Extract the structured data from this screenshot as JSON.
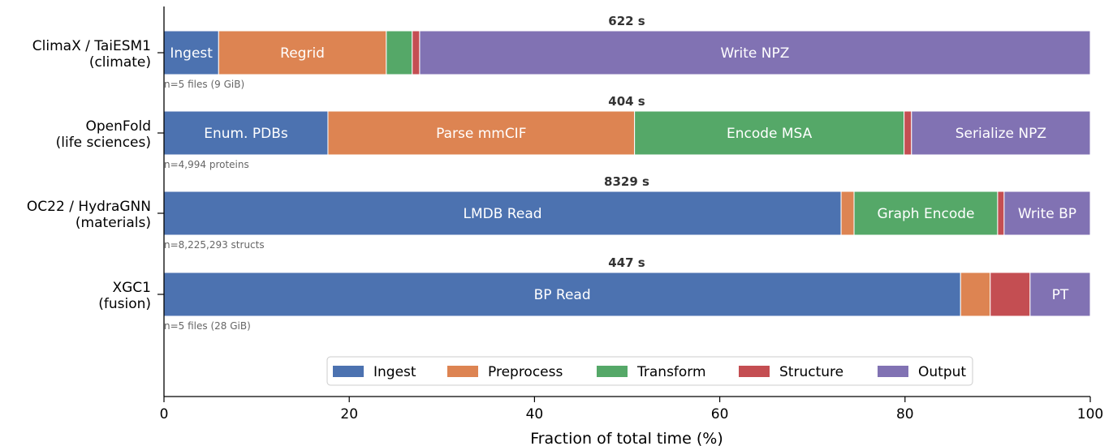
{
  "chart_data": {
    "type": "bar",
    "orientation": "horizontal",
    "stacked": true,
    "xlabel": "Fraction of total time (%)",
    "xlim": [
      0,
      100
    ],
    "xticks": [
      0,
      20,
      40,
      60,
      80,
      100
    ],
    "grid": false,
    "legend_position": "bottom-center",
    "categories": [
      "ClimaX / TaiESM1\n(climate)",
      "OpenFold\n(life sciences)",
      "OC22 / HydraGNN\n(materials)",
      "XGC1\n(fusion)"
    ],
    "totals": [
      "622 s",
      "404 s",
      "8329 s",
      "447 s"
    ],
    "notes": [
      "n=5 files  (9 GiB)",
      "n=4,994 proteins",
      "n=8,225,293 structs",
      "n=5 files  (28 GiB)"
    ],
    "series": [
      {
        "name": "Ingest",
        "color": "#4c72b0",
        "values": [
          5.9,
          17.7,
          73.1,
          86.0
        ]
      },
      {
        "name": "Preprocess",
        "color": "#dd8452",
        "values": [
          18.1,
          33.1,
          1.4,
          3.2
        ]
      },
      {
        "name": "Transform",
        "color": "#55a868",
        "values": [
          2.8,
          29.1,
          15.5,
          0.0
        ]
      },
      {
        "name": "Structure",
        "color": "#c44e52",
        "values": [
          0.8,
          0.8,
          0.7,
          4.3
        ]
      },
      {
        "name": "Output",
        "color": "#8172b3",
        "values": [
          72.4,
          19.3,
          9.3,
          6.5
        ]
      }
    ],
    "segment_labels": [
      [
        "Ingest",
        "Regrid",
        "",
        "",
        "Write NPZ"
      ],
      [
        "Enum. PDBs",
        "Parse mmCIF",
        "Encode MSA",
        "",
        "Serialize NPZ"
      ],
      [
        "LMDB Read",
        "",
        "Graph Encode",
        "",
        "Write BP"
      ],
      [
        "BP Read",
        "",
        "",
        "",
        "PT"
      ]
    ]
  }
}
